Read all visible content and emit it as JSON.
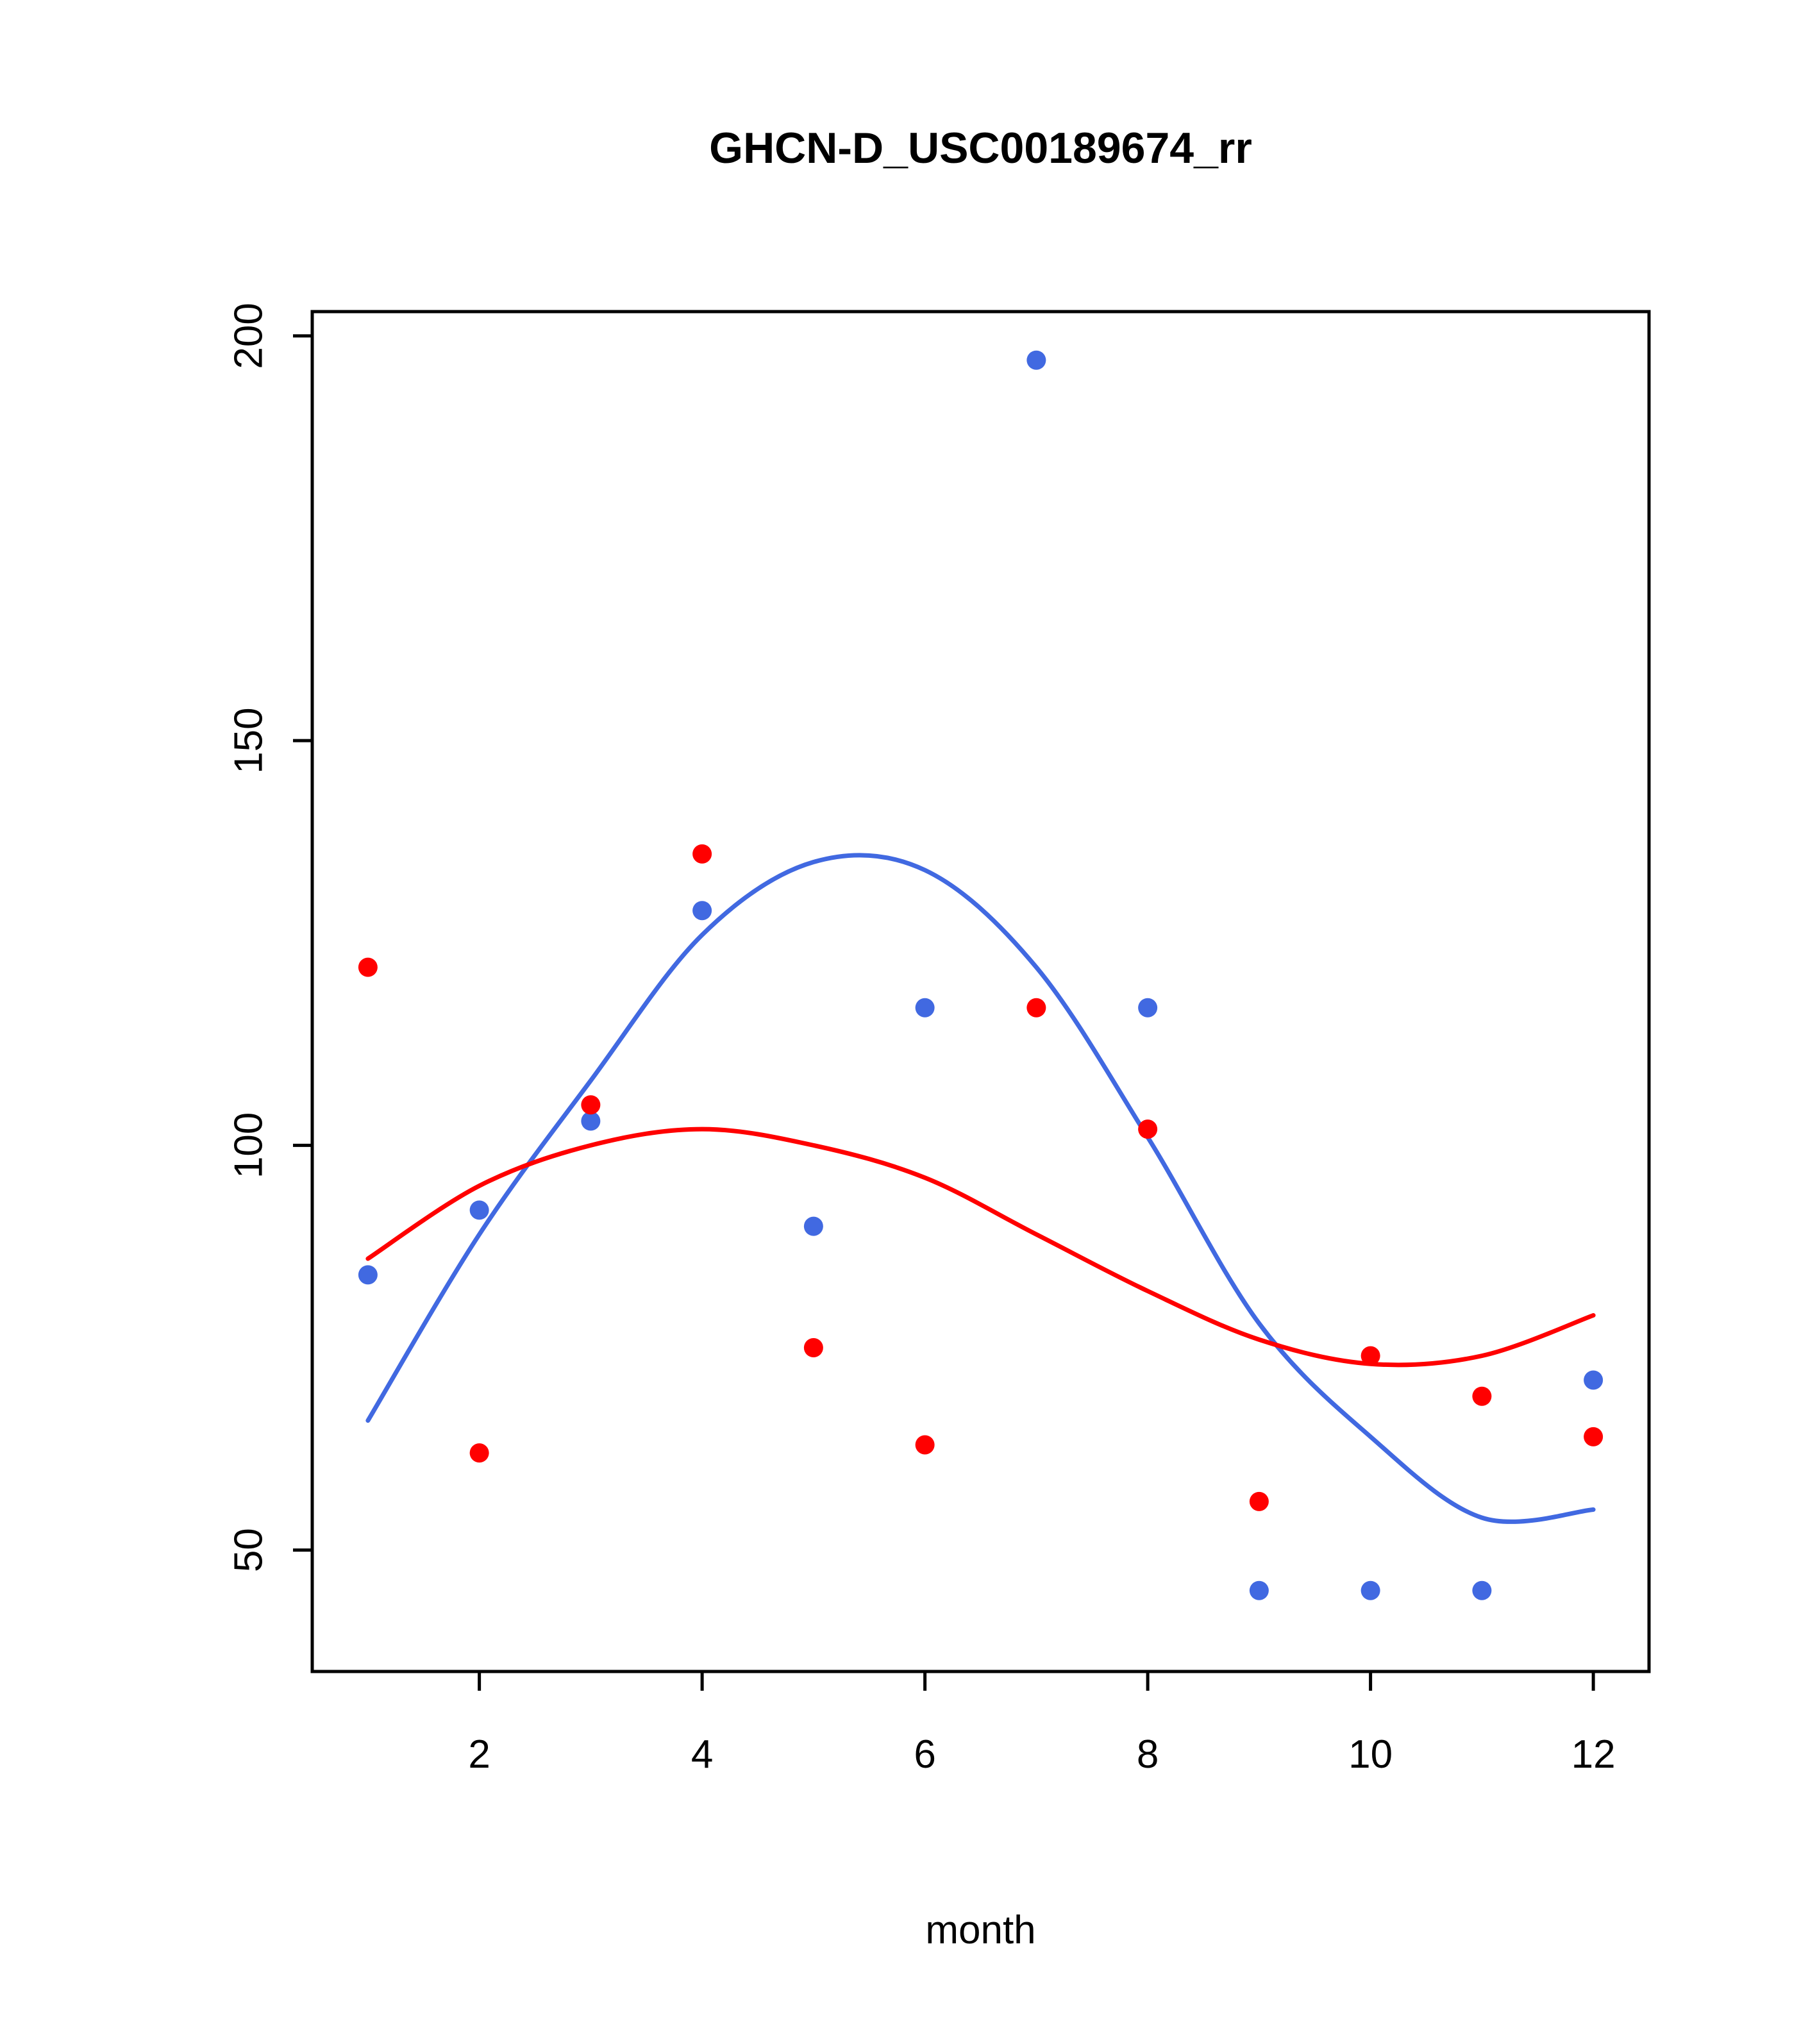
{
  "chart_data": {
    "type": "scatter",
    "title": "GHCN-D_USC00189674_rr",
    "xlabel": "month",
    "ylabel": "",
    "x": [
      1,
      2,
      3,
      4,
      5,
      6,
      7,
      8,
      9,
      10,
      11,
      12
    ],
    "x_ticks": [
      2,
      4,
      6,
      8,
      10,
      12
    ],
    "y_ticks": [
      50,
      100,
      150,
      200
    ],
    "xlim": [
      0.5,
      12.5
    ],
    "ylim": [
      35,
      203
    ],
    "grid": false,
    "legend": "none",
    "colors": {
      "blue": "#4169E1",
      "red": "#FF0000",
      "axis": "#000000"
    },
    "series": [
      {
        "name": "blue-points",
        "type": "points",
        "color": "#4169E1",
        "values": [
          84,
          92,
          103,
          129,
          90,
          117,
          197,
          117,
          45,
          45,
          45,
          71
        ]
      },
      {
        "name": "red-points",
        "type": "points",
        "color": "#FF0000",
        "values": [
          122,
          62,
          105,
          136,
          75,
          63,
          117,
          102,
          56,
          74,
          69,
          64
        ]
      },
      {
        "name": "blue-smooth",
        "type": "line",
        "color": "#4169E1",
        "values": [
          66,
          89,
          108,
          126,
          135,
          134,
          122,
          101,
          78,
          64,
          54,
          55
        ]
      },
      {
        "name": "red-smooth",
        "type": "line",
        "color": "#FF0000",
        "values": [
          86,
          95,
          100,
          102,
          100,
          96,
          89,
          82,
          76,
          73,
          74,
          79
        ]
      }
    ]
  }
}
